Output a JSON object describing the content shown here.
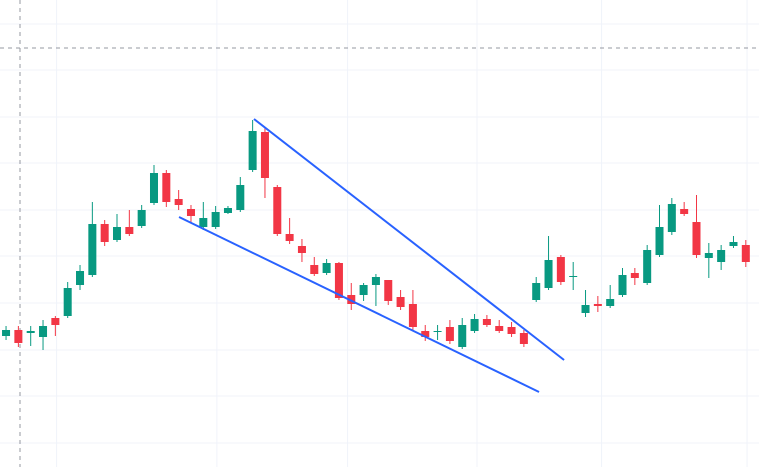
{
  "chart_data": {
    "type": "candlestick",
    "x": [
      0,
      1,
      2,
      3,
      4,
      5,
      6,
      7,
      8,
      9,
      10,
      11,
      12,
      13,
      14,
      15,
      16,
      17,
      18,
      19,
      20,
      21,
      22,
      23,
      24,
      25,
      26,
      27,
      28,
      29,
      30,
      31,
      32,
      33,
      34,
      35,
      36,
      37,
      38,
      39,
      40,
      41,
      42,
      43,
      44,
      45,
      46,
      47,
      48,
      49,
      50,
      51,
      52,
      53,
      54,
      55,
      56,
      57,
      58,
      59,
      60
    ],
    "open": [
      131,
      137,
      134,
      130,
      149,
      151,
      182,
      192,
      243,
      227,
      240,
      241,
      264,
      294,
      268,
      258,
      240,
      240,
      254,
      257,
      297,
      335,
      280,
      233,
      221,
      202,
      194,
      204,
      172,
      172,
      182,
      187,
      170,
      163,
      136,
      135,
      140,
      120,
      136,
      148,
      141,
      140,
      134,
      167,
      179,
      210,
      190,
      154,
      163,
      161,
      172,
      194,
      184,
      212,
      235,
      258,
      245,
      209,
      205,
      221,
      222
    ],
    "high": [
      141,
      141,
      141,
      147,
      151,
      185,
      202,
      265,
      247,
      253,
      257,
      262,
      302,
      297,
      277,
      262,
      265,
      261,
      261,
      290,
      347,
      339,
      282,
      249,
      228,
      210,
      208,
      205,
      184,
      184,
      193,
      187,
      177,
      177,
      142,
      142,
      147,
      149,
      153,
      152,
      147,
      145,
      137,
      190,
      231,
      212,
      205,
      177,
      171,
      182,
      199,
      199,
      222,
      262,
      269,
      265,
      272,
      224,
      222,
      231,
      227
    ],
    "low": [
      127,
      120,
      121,
      117,
      131,
      149,
      177,
      190,
      221,
      225,
      231,
      239,
      262,
      260,
      257,
      245,
      237,
      238,
      253,
      255,
      295,
      269,
      231,
      223,
      205,
      191,
      192,
      167,
      157,
      166,
      161,
      162,
      157,
      137,
      126,
      127,
      123,
      118,
      134,
      140,
      134,
      130,
      120,
      165,
      177,
      182,
      177,
      150,
      155,
      159,
      170,
      182,
      182,
      210,
      232,
      251,
      209,
      189,
      197,
      219,
      200
    ],
    "close": [
      137,
      124,
      136,
      141,
      142,
      179,
      196,
      243,
      225,
      240,
      233,
      257,
      294,
      265,
      262,
      251,
      249,
      255,
      259,
      282,
      336,
      289,
      233,
      226,
      214,
      193,
      204,
      169,
      163,
      182,
      190,
      166,
      160,
      140,
      130,
      136,
      126,
      142,
      148,
      142,
      136,
      133,
      123,
      184,
      207,
      185,
      191,
      162,
      161,
      168,
      192,
      189,
      217,
      240,
      263,
      253,
      212,
      214,
      217,
      225,
      205
    ],
    "up_color": "#089981",
    "down_color": "#f23645",
    "xlim": [
      -0.49,
      61.07
    ],
    "ylim": [
      0,
      467
    ],
    "xticks": [
      4.1,
      17.1,
      27.7,
      38.2,
      48.3,
      60.1
    ],
    "yticks": [
      24,
      71,
      117,
      164,
      211,
      257,
      304,
      350,
      397,
      443
    ],
    "grid": true,
    "trendlines": [
      {
        "color": "#2962ff",
        "x": [
          20.11,
          45.26
        ],
        "values": [
          348,
          107
        ]
      },
      {
        "color": "#2962ff",
        "x": [
          14.03,
          43.23
        ],
        "values": [
          250,
          75
        ]
      }
    ]
  }
}
